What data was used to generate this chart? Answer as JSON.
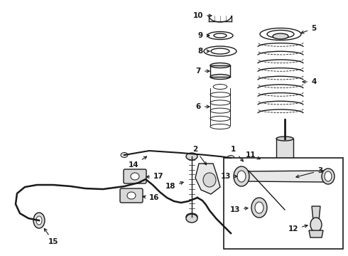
{
  "bg_color": "#ffffff",
  "line_color": "#1a1a1a",
  "fig_width": 4.9,
  "fig_height": 3.6,
  "dpi": 100,
  "font_size": 7.5,
  "font_weight": "bold"
}
